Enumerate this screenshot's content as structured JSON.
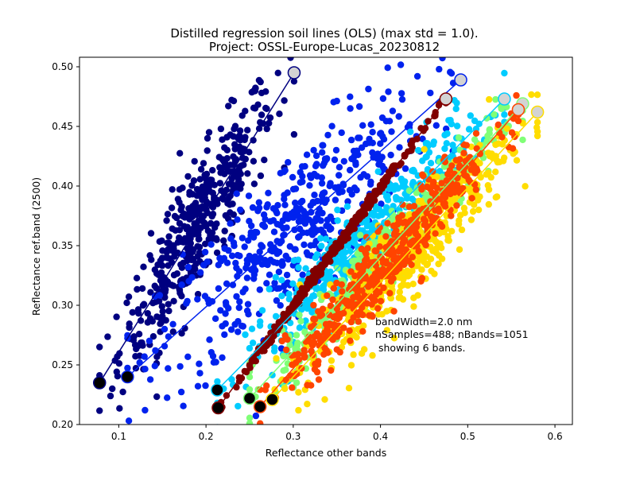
{
  "chart_data": {
    "type": "scatter",
    "title": "Distilled regression soil lines (OLS) (max std = 1.0).",
    "subtitle": "Project: OSSL-Europe-Lucas_20230812",
    "xlabel": "Reflectance other bands",
    "ylabel": "Reflectance ref.band (2500)",
    "xlim": [
      0.055,
      0.62
    ],
    "ylim": [
      0.2,
      0.508
    ],
    "xticks": [
      0.1,
      0.2,
      0.3,
      0.4,
      0.5,
      0.6
    ],
    "xtick_labels": [
      "0.1",
      "0.2",
      "0.3",
      "0.4",
      "0.5",
      "0.6"
    ],
    "yticks": [
      0.2,
      0.25,
      0.3,
      0.35,
      0.4,
      0.45,
      0.5
    ],
    "ytick_labels": [
      "0.20",
      "0.25",
      "0.30",
      "0.35",
      "0.40",
      "0.45",
      "0.50"
    ],
    "grid": false,
    "legend": false,
    "annotation_lines": [
      "bandWidth=2.0 nm",
      "nSamples=488; nBands=1051",
      " showing 6 bands."
    ],
    "series": [
      {
        "color": "#000080",
        "line": {
          "x1": 0.078,
          "y1": 0.235,
          "x2": 0.301,
          "y2": 0.495
        },
        "spread": 0.026
      },
      {
        "color": "#0022ee",
        "line": {
          "x1": 0.11,
          "y1": 0.24,
          "x2": 0.492,
          "y2": 0.489
        },
        "spread": 0.032
      },
      {
        "color": "#00ccff",
        "line": {
          "x1": 0.213,
          "y1": 0.229,
          "x2": 0.542,
          "y2": 0.473
        },
        "spread": 0.018
      },
      {
        "color": "#80ff77",
        "line": {
          "x1": 0.25,
          "y1": 0.222,
          "x2": 0.563,
          "y2": 0.469
        },
        "spread": 0.014
      },
      {
        "color": "#ffdd00",
        "line": {
          "x1": 0.276,
          "y1": 0.221,
          "x2": 0.58,
          "y2": 0.462
        },
        "spread": 0.02
      },
      {
        "color": "#ff4400",
        "line": {
          "x1": 0.262,
          "y1": 0.215,
          "x2": 0.558,
          "y2": 0.464
        },
        "spread": 0.016
      },
      {
        "color": "#800000",
        "line": {
          "x1": 0.214,
          "y1": 0.214,
          "x2": 0.475,
          "y2": 0.473
        },
        "spread": 0.002
      }
    ],
    "endpoint_markers": {
      "start": {
        "face": "#000000",
        "edge_match_series": true
      },
      "end": {
        "face": "#d3d3d3",
        "edge_match_series": true
      }
    },
    "points_per_series": 460
  }
}
